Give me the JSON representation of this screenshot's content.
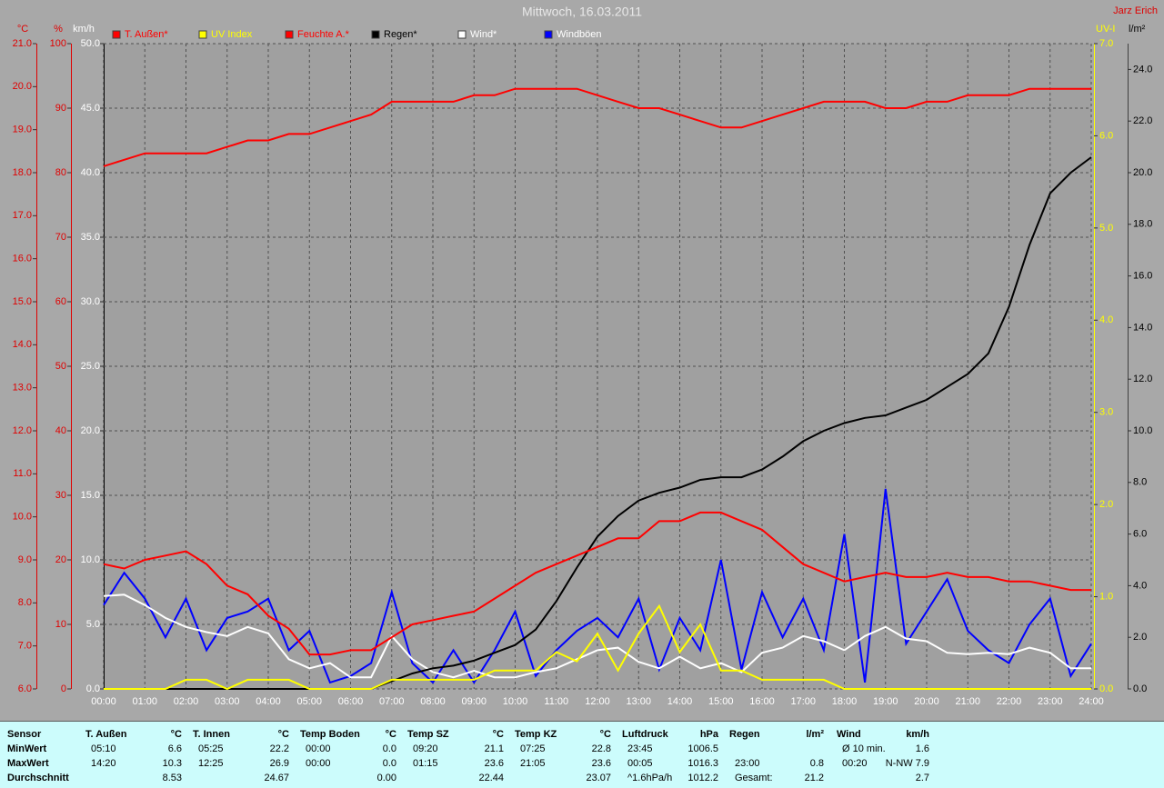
{
  "chart_data": {
    "type": "line",
    "title": "Mittwoch, 16.03.2011",
    "author": "Jarz Erich",
    "x": [
      0,
      0.5,
      1,
      1.5,
      2,
      2.5,
      3,
      3.5,
      4,
      4.5,
      5,
      5.5,
      6,
      6.5,
      7,
      7.5,
      8,
      8.5,
      9,
      9.5,
      10,
      10.5,
      11,
      11.5,
      12,
      12.5,
      13,
      13.5,
      14,
      14.5,
      15,
      15.5,
      16,
      16.5,
      17,
      17.5,
      18,
      18.5,
      19,
      19.5,
      20,
      20.5,
      21,
      21.5,
      22,
      22.5,
      23,
      23.5,
      24
    ],
    "xlim": [
      0,
      24
    ],
    "xticks": [
      {
        "value": 0,
        "label": "00:00"
      },
      {
        "value": 1,
        "label": "01:00"
      },
      {
        "value": 2,
        "label": "02:00"
      },
      {
        "value": 3,
        "label": "03:00"
      },
      {
        "value": 4,
        "label": "04:00"
      },
      {
        "value": 5,
        "label": "05:00"
      },
      {
        "value": 6,
        "label": "06:00"
      },
      {
        "value": 7,
        "label": "07:00"
      },
      {
        "value": 8,
        "label": "08:00"
      },
      {
        "value": 9,
        "label": "09:00"
      },
      {
        "value": 10,
        "label": "10:00"
      },
      {
        "value": 11,
        "label": "11:00"
      },
      {
        "value": 12,
        "label": "12:00"
      },
      {
        "value": 13,
        "label": "13:00"
      },
      {
        "value": 14,
        "label": "14:00"
      },
      {
        "value": 15,
        "label": "15:00"
      },
      {
        "value": 16,
        "label": "16:00"
      },
      {
        "value": 17,
        "label": "17:00"
      },
      {
        "value": 18,
        "label": "18:00"
      },
      {
        "value": 19,
        "label": "19:00"
      },
      {
        "value": 20,
        "label": "20:00"
      },
      {
        "value": 21,
        "label": "21:00"
      },
      {
        "value": 22,
        "label": "22:00"
      },
      {
        "value": 23,
        "label": "23:00"
      },
      {
        "value": 24,
        "label": "24:00"
      }
    ],
    "grid": true,
    "grid_axis": 2,
    "axes": [
      {
        "unit": "°C",
        "color": "#e00000",
        "lim": [
          6,
          21
        ],
        "ticks": [
          {
            "value": 6,
            "label": "6.0"
          },
          {
            "value": 7,
            "label": "7.0"
          },
          {
            "value": 8,
            "label": "8.0"
          },
          {
            "value": 9,
            "label": "9.0"
          },
          {
            "value": 10,
            "label": "10.0"
          },
          {
            "value": 11,
            "label": "11.0"
          },
          {
            "value": 12,
            "label": "12.0"
          },
          {
            "value": 13,
            "label": "13.0"
          },
          {
            "value": 14,
            "label": "14.0"
          },
          {
            "value": 15,
            "label": "15.0"
          },
          {
            "value": 16,
            "label": "16.0"
          },
          {
            "value": 17,
            "label": "17.0"
          },
          {
            "value": 18,
            "label": "18.0"
          },
          {
            "value": 19,
            "label": "19.0"
          },
          {
            "value": 20,
            "label": "20.0"
          },
          {
            "value": 21,
            "label": "21.0"
          }
        ]
      },
      {
        "unit": "%",
        "color": "#e00000",
        "lim": [
          0,
          100
        ],
        "ticks": [
          0,
          10,
          20,
          30,
          40,
          50,
          60,
          70,
          80,
          90,
          100
        ]
      },
      {
        "unit": "km/h",
        "color": "#ffffff",
        "lim": [
          0,
          50
        ],
        "ticks": [
          {
            "value": 0,
            "label": "0.0"
          },
          {
            "value": 5,
            "label": "5.0"
          },
          {
            "value": 10,
            "label": "10.0"
          },
          {
            "value": 15,
            "label": "15.0"
          },
          {
            "value": 20,
            "label": "20.0"
          },
          {
            "value": 25,
            "label": "25.0"
          },
          {
            "value": 30,
            "label": "30.0"
          },
          {
            "value": 35,
            "label": "35.0"
          },
          {
            "value": 40,
            "label": "40.0"
          },
          {
            "value": 45,
            "label": "45.0"
          },
          {
            "value": 50,
            "label": "50.0"
          }
        ]
      },
      {
        "unit": "UV-I",
        "color": "#ffff00",
        "lim": [
          0,
          7
        ],
        "ticks": [
          {
            "value": 0,
            "label": "0.0"
          },
          {
            "value": 1,
            "label": "1.0"
          },
          {
            "value": 2,
            "label": "2.0"
          },
          {
            "value": 3,
            "label": "3.0"
          },
          {
            "value": 4,
            "label": "4.0"
          },
          {
            "value": 5,
            "label": "5.0"
          },
          {
            "value": 6,
            "label": "6.0"
          },
          {
            "value": 7,
            "label": "7.0"
          }
        ]
      },
      {
        "unit": "l/m²",
        "color": "#000000",
        "lim": [
          0,
          25
        ],
        "ticks": [
          {
            "value": 0,
            "label": "0.0"
          },
          {
            "value": 2,
            "label": "2.0"
          },
          {
            "value": 4,
            "label": "4.0"
          },
          {
            "value": 6,
            "label": "6.0"
          },
          {
            "value": 8,
            "label": "8.0"
          },
          {
            "value": 10,
            "label": "10.0"
          },
          {
            "value": 12,
            "label": "12.0"
          },
          {
            "value": 14,
            "label": "14.0"
          },
          {
            "value": 16,
            "label": "16.0"
          },
          {
            "value": 18,
            "label": "18.0"
          },
          {
            "value": 20,
            "label": "20.0"
          },
          {
            "value": 22,
            "label": "22.0"
          },
          {
            "value": 24,
            "label": "24.0"
          }
        ]
      }
    ],
    "series": [
      {
        "name": "T. Außen*",
        "color": "#ff0000",
        "label_color": "#ff0000",
        "axis": 0,
        "values": [
          8.9,
          8.8,
          9.0,
          9.1,
          9.2,
          8.9,
          8.4,
          8.2,
          7.7,
          7.4,
          6.8,
          6.8,
          6.9,
          6.9,
          7.2,
          7.5,
          7.6,
          7.7,
          7.8,
          8.1,
          8.4,
          8.7,
          8.9,
          9.1,
          9.3,
          9.5,
          9.5,
          9.9,
          9.9,
          10.1,
          10.1,
          9.9,
          9.7,
          9.3,
          8.9,
          8.7,
          8.5,
          8.6,
          8.7,
          8.6,
          8.6,
          8.7,
          8.6,
          8.6,
          8.5,
          8.5,
          8.4,
          8.3,
          8.3
        ]
      },
      {
        "name": "UV Index",
        "color": "#ffff00",
        "label_color": "#ffff00",
        "axis": 3,
        "values": [
          0,
          0,
          0,
          0,
          0.1,
          0.1,
          0,
          0.1,
          0.1,
          0.1,
          0,
          0,
          0,
          0,
          0.1,
          0.1,
          0.1,
          0.1,
          0.1,
          0.2,
          0.2,
          0.2,
          0.4,
          0.3,
          0.6,
          0.2,
          0.6,
          0.9,
          0.4,
          0.7,
          0.2,
          0.2,
          0.1,
          0.1,
          0.1,
          0.1,
          0,
          0,
          0,
          0,
          0,
          0,
          0,
          0,
          0,
          0,
          0,
          0,
          0
        ]
      },
      {
        "name": "Feuchte A.*",
        "color": "#ff0000",
        "label_color": "#ff0000",
        "axis": 1,
        "values": [
          81,
          82,
          83,
          83,
          83,
          83,
          84,
          85,
          85,
          86,
          86,
          87,
          88,
          89,
          91,
          91,
          91,
          91,
          92,
          92,
          93,
          93,
          93,
          93,
          92,
          91,
          90,
          90,
          89,
          88,
          87,
          87,
          88,
          89,
          90,
          91,
          91,
          91,
          90,
          90,
          91,
          91,
          92,
          92,
          92,
          93,
          93,
          93,
          93
        ]
      },
      {
        "name": "Regen*",
        "color": "#000000",
        "label_color": "#000000",
        "axis": 4,
        "values": [
          0,
          0,
          0,
          0,
          0,
          0,
          0,
          0,
          0,
          0,
          0,
          0,
          0,
          0,
          0.3,
          0.6,
          0.8,
          0.9,
          1.1,
          1.4,
          1.7,
          2.3,
          3.4,
          4.7,
          5.9,
          6.7,
          7.3,
          7.6,
          7.8,
          8.1,
          8.2,
          8.2,
          8.5,
          9.0,
          9.6,
          10.0,
          10.3,
          10.5,
          10.6,
          10.9,
          11.2,
          11.7,
          12.2,
          13.0,
          14.8,
          17.2,
          19.2,
          20.0,
          20.6
        ]
      },
      {
        "name": "Wind*",
        "color": "#ffffff",
        "label_color": "#ffffff",
        "axis": 2,
        "values": [
          7.2,
          7.3,
          6.5,
          5.5,
          4.8,
          4.4,
          4.1,
          4.8,
          4.3,
          2.3,
          1.6,
          2.0,
          0.9,
          0.9,
          4.1,
          2.3,
          1.3,
          0.9,
          1.4,
          0.9,
          0.9,
          1.3,
          1.6,
          2.3,
          3.0,
          3.2,
          2.1,
          1.6,
          2.5,
          1.6,
          2.0,
          1.3,
          2.8,
          3.2,
          4.1,
          3.7,
          3.0,
          4.1,
          4.8,
          3.9,
          3.7,
          2.8,
          2.7,
          2.8,
          2.7,
          3.2,
          2.8,
          1.6,
          1.6
        ]
      },
      {
        "name": "Windböen",
        "color": "#0000ff",
        "label_color": "#ffffff",
        "axis": 2,
        "values": [
          6.5,
          9.0,
          7.0,
          4.0,
          7.0,
          3.0,
          5.5,
          6.0,
          7.0,
          3.0,
          4.5,
          0.5,
          1.0,
          2.0,
          7.5,
          2.0,
          0.5,
          3.0,
          0.5,
          3.0,
          6.0,
          1.0,
          3.0,
          4.5,
          5.5,
          4.0,
          7.0,
          1.5,
          5.5,
          3.0,
          10.0,
          1.5,
          7.5,
          4.0,
          7.0,
          3.0,
          12.0,
          0.5,
          15.5,
          3.5,
          6.0,
          8.5,
          4.5,
          3.0,
          2.0,
          5.0,
          7.0,
          1.0,
          3.5
        ]
      }
    ]
  },
  "table": {
    "columns": [
      {
        "name": "Sensor"
      },
      {
        "name": "T. Außen",
        "unit": "°C"
      },
      {
        "name": "T. Innen",
        "unit": "°C"
      },
      {
        "name": "Temp Boden",
        "unit": "°C"
      },
      {
        "name": "Temp SZ",
        "unit": "°C"
      },
      {
        "name": "Temp KZ",
        "unit": "°C"
      },
      {
        "name": "Luftdruck",
        "unit": "hPa"
      },
      {
        "name": "Regen",
        "unit": "l/m²"
      },
      {
        "name": "Wind",
        "unit": "km/h"
      }
    ],
    "rows": [
      {
        "label": "MinWert",
        "cells": [
          [
            "05:10",
            "6.6"
          ],
          [
            "05:25",
            "22.2"
          ],
          [
            "00:00",
            "0.0"
          ],
          [
            "09:20",
            "21.1"
          ],
          [
            "07:25",
            "22.8"
          ],
          [
            "23:45",
            "1006.5"
          ],
          [
            null,
            null
          ],
          [
            "Ø 10 min.",
            "1.6"
          ]
        ]
      },
      {
        "label": "MaxWert",
        "cells": [
          [
            "14:20",
            "10.3"
          ],
          [
            "12:25",
            "26.9"
          ],
          [
            "00:00",
            "0.0"
          ],
          [
            "01:15",
            "23.6"
          ],
          [
            "21:05",
            "23.6"
          ],
          [
            "00:05",
            "1016.3"
          ],
          [
            "23:00",
            "0.8"
          ],
          [
            "00:20",
            "N-NW 7.9"
          ]
        ]
      },
      {
        "label": "Durchschnitt",
        "cells": [
          [
            null,
            "8.53"
          ],
          [
            null,
            "24.67"
          ],
          [
            null,
            "0.00"
          ],
          [
            null,
            "22.44"
          ],
          [
            null,
            "23.07"
          ],
          [
            "^1.6hPa/h",
            "1012.2"
          ],
          [
            "Gesamt:",
            "21.2"
          ],
          [
            null,
            "2.7"
          ]
        ]
      }
    ]
  }
}
